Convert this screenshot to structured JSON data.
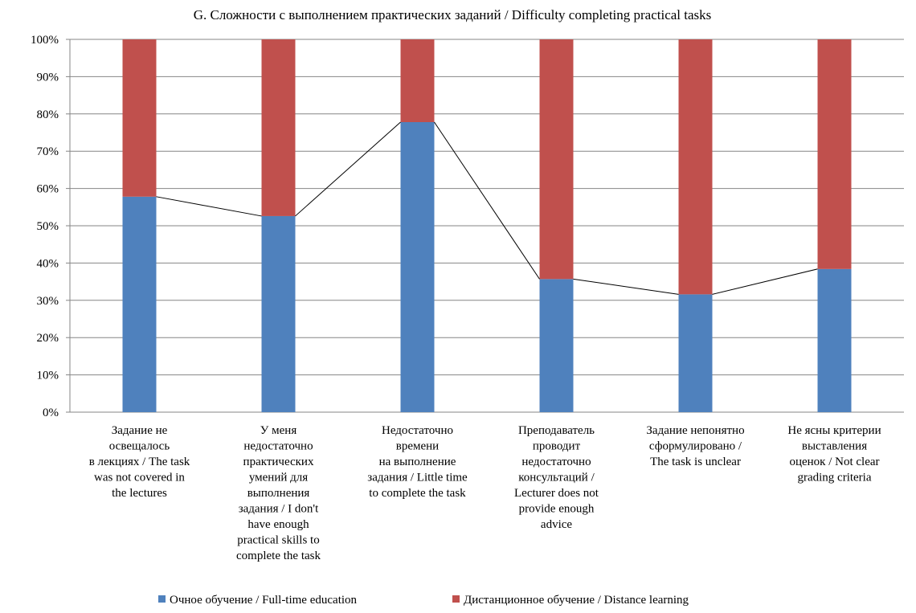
{
  "chart_data": {
    "type": "bar",
    "stacked": true,
    "percent_stacked": true,
    "title": "G. Сложности с  выполнением практических заданий / Difficulty completing practical tasks",
    "xlabel": "",
    "ylabel": "",
    "ylim": [
      0,
      100
    ],
    "yticks": [
      "0%",
      "10%",
      "20%",
      "30%",
      "40%",
      "50%",
      "60%",
      "70%",
      "80%",
      "90%",
      "100%"
    ],
    "grid": true,
    "legend_position": "bottom",
    "categories": [
      [
        "Задание не",
        "освещалось",
        "в лекциях / The task",
        "was not covered in",
        "the lectures"
      ],
      [
        "У меня",
        "недостаточно",
        "практических",
        "умений  для",
        "выполнения",
        "задания / I don't",
        "have enough",
        "practical skills to",
        "complete the task"
      ],
      [
        "Недостаточно",
        "времени",
        "на выполнение",
        "задания / Little time",
        "to complete the task"
      ],
      [
        "Преподаватель",
        "проводит",
        "недостаточно",
        "консультаций /",
        "Lecturer does not",
        "provide enough",
        "advice"
      ],
      [
        "Задание непонятно",
        "сформулировано /",
        "The task is unclear"
      ],
      [
        "Не ясны критерии",
        "выставления",
        "оценок / Not clear",
        "grading criteria"
      ]
    ],
    "series": [
      {
        "name": "Очное обучение / Full-time education",
        "color": "#4f81bd",
        "values": [
          57.8,
          52.6,
          77.8,
          35.7,
          31.6,
          38.4
        ]
      },
      {
        "name": "Дистанционное обучение / Distance learning",
        "color": "#c0504d",
        "values": [
          42.2,
          47.4,
          22.2,
          64.3,
          68.4,
          61.6
        ]
      }
    ],
    "connector_line": {
      "series": "Очное обучение / Full-time education",
      "color": "#000000"
    }
  }
}
